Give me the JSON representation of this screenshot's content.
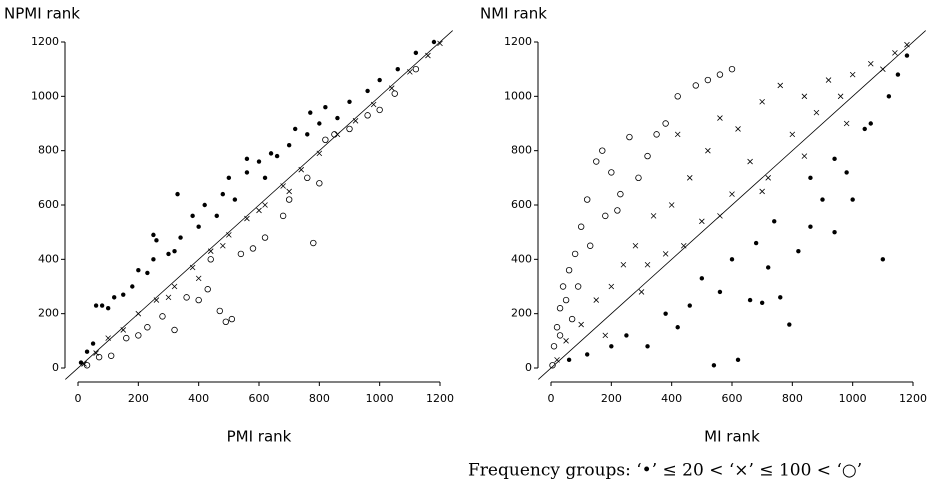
{
  "chart_data": [
    {
      "type": "scatter",
      "ylabel": "NPMI rank",
      "xlabel": "PMI rank",
      "xlim": [
        0,
        1200
      ],
      "ylim": [
        0,
        1200
      ],
      "xticks": [
        0,
        200,
        400,
        600,
        800,
        1000,
        1200
      ],
      "yticks": [
        0,
        200,
        400,
        600,
        800,
        1000,
        1200
      ],
      "diagonal": true,
      "series": [
        {
          "marker": "dot",
          "color": "#000000",
          "x": [
            10,
            30,
            50,
            60,
            80,
            100,
            120,
            150,
            180,
            200,
            230,
            250,
            260,
            300,
            320,
            340,
            380,
            400,
            420,
            460,
            480,
            500,
            520,
            560,
            600,
            620,
            660,
            700,
            720,
            760,
            800,
            820,
            860,
            900,
            960,
            1000,
            1060,
            1120,
            1180,
            250,
            330,
            560,
            640,
            770
          ],
          "values": [
            20,
            60,
            90,
            230,
            230,
            220,
            260,
            270,
            300,
            360,
            350,
            400,
            470,
            420,
            430,
            480,
            560,
            520,
            600,
            560,
            640,
            700,
            620,
            720,
            760,
            700,
            780,
            820,
            880,
            860,
            900,
            960,
            920,
            980,
            1020,
            1060,
            1100,
            1160,
            1200,
            490,
            640,
            770,
            790,
            940
          ]
        },
        {
          "marker": "cross",
          "color": "#000000",
          "x": [
            20,
            60,
            100,
            150,
            200,
            260,
            320,
            380,
            440,
            500,
            560,
            620,
            680,
            740,
            800,
            860,
            920,
            980,
            1040,
            1100,
            1160,
            1200,
            300,
            400,
            480,
            600,
            700
          ],
          "values": [
            15,
            55,
            110,
            140,
            200,
            250,
            300,
            370,
            430,
            490,
            550,
            600,
            670,
            730,
            790,
            860,
            910,
            970,
            1030,
            1090,
            1150,
            1195,
            260,
            330,
            450,
            580,
            650
          ]
        },
        {
          "marker": "circle",
          "color": "#000000",
          "x": [
            30,
            70,
            110,
            160,
            200,
            230,
            280,
            320,
            360,
            400,
            430,
            470,
            490,
            510,
            540,
            580,
            620,
            680,
            700,
            760,
            780,
            800,
            820,
            850,
            900,
            960,
            1000,
            1050,
            1120,
            440
          ],
          "values": [
            10,
            40,
            45,
            110,
            120,
            150,
            190,
            140,
            260,
            250,
            290,
            210,
            170,
            180,
            420,
            440,
            480,
            560,
            620,
            700,
            460,
            680,
            840,
            860,
            880,
            930,
            950,
            1010,
            1100,
            400
          ]
        }
      ]
    },
    {
      "type": "scatter",
      "ylabel": "NMI rank",
      "xlabel": "MI rank",
      "xlim": [
        0,
        1200
      ],
      "ylim": [
        0,
        1200
      ],
      "xticks": [
        0,
        200,
        400,
        600,
        800,
        1000,
        1200
      ],
      "yticks": [
        0,
        200,
        400,
        600,
        800,
        1000,
        1200
      ],
      "diagonal": true,
      "series": [
        {
          "marker": "dot",
          "color": "#000000",
          "x": [
            60,
            120,
            200,
            250,
            320,
            380,
            420,
            460,
            500,
            540,
            560,
            620,
            660,
            700,
            720,
            760,
            790,
            820,
            860,
            900,
            940,
            980,
            1000,
            1040,
            1060,
            1100,
            1120,
            1150,
            1180,
            600,
            680,
            740,
            860,
            940
          ],
          "values": [
            30,
            50,
            80,
            120,
            80,
            200,
            150,
            230,
            330,
            10,
            280,
            30,
            250,
            240,
            370,
            260,
            160,
            430,
            520,
            620,
            500,
            720,
            620,
            880,
            900,
            400,
            1000,
            1080,
            1150,
            400,
            460,
            540,
            700,
            770
          ]
        },
        {
          "marker": "cross",
          "color": "#000000",
          "x": [
            20,
            50,
            100,
            150,
            200,
            240,
            280,
            300,
            340,
            380,
            400,
            420,
            460,
            500,
            520,
            560,
            600,
            620,
            660,
            700,
            720,
            760,
            800,
            840,
            880,
            920,
            960,
            1000,
            1060,
            1100,
            1140,
            1180,
            180,
            320,
            440,
            560,
            700,
            840,
            980
          ],
          "values": [
            30,
            100,
            160,
            250,
            300,
            380,
            450,
            280,
            560,
            420,
            600,
            860,
            700,
            540,
            800,
            920,
            640,
            880,
            760,
            980,
            700,
            1040,
            860,
            1000,
            940,
            1060,
            1000,
            1080,
            1120,
            1100,
            1160,
            1190,
            120,
            380,
            450,
            560,
            650,
            780,
            900
          ]
        },
        {
          "marker": "circle",
          "color": "#000000",
          "x": [
            5,
            10,
            20,
            30,
            40,
            50,
            60,
            80,
            90,
            100,
            120,
            150,
            170,
            200,
            230,
            260,
            290,
            320,
            350,
            380,
            420,
            480,
            520,
            560,
            600,
            130,
            70,
            180,
            220,
            30
          ],
          "values": [
            10,
            80,
            150,
            220,
            300,
            250,
            360,
            420,
            300,
            520,
            620,
            760,
            800,
            720,
            640,
            850,
            700,
            780,
            860,
            900,
            1000,
            1040,
            1060,
            1080,
            1100,
            450,
            180,
            560,
            580,
            120
          ]
        }
      ]
    }
  ],
  "caption": "Frequency groups: ‘•’ ≤ 20 < ‘×’ ≤ 100 < ‘○’"
}
